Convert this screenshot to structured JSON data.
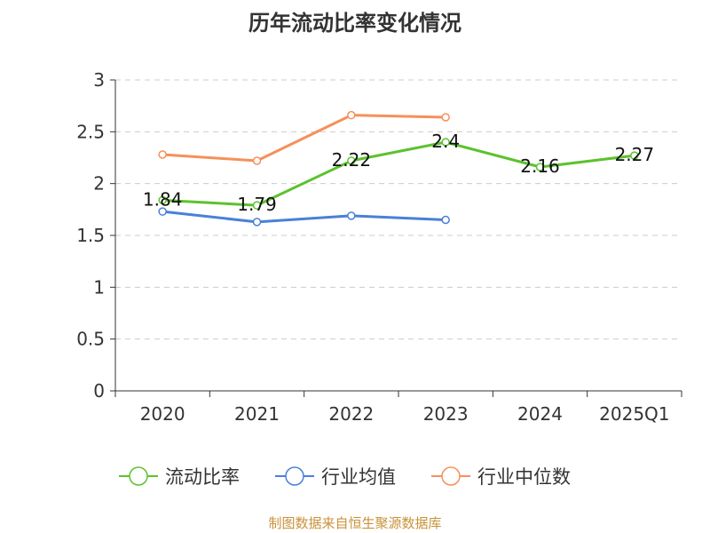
{
  "title": "历年流动比率变化情况",
  "source": "制图数据来自恒生聚源数据库",
  "chart_data": {
    "type": "line",
    "title": "历年流动比率变化情况",
    "categories": [
      "2020",
      "2021",
      "2022",
      "2023",
      "2024",
      "2025Q1"
    ],
    "y_ticks": [
      "0",
      "0.5",
      "1",
      "1.5",
      "2",
      "2.5",
      "3"
    ],
    "ylim": [
      0,
      3
    ],
    "grid": true,
    "legend_position": "bottom",
    "series": [
      {
        "name": "流动比率",
        "color": "#5cc22e",
        "values": [
          1.84,
          1.79,
          2.22,
          2.4,
          2.16,
          2.27
        ],
        "labels": [
          "1.84",
          "1.79",
          "2.22",
          "2.4",
          "2.16",
          "2.27"
        ]
      },
      {
        "name": "行业均值",
        "color": "#4a80d9",
        "values": [
          1.73,
          1.63,
          1.69,
          1.65,
          null,
          null
        ]
      },
      {
        "name": "行业中位数",
        "color": "#f6905a",
        "values": [
          2.28,
          2.22,
          2.66,
          2.64,
          null,
          null
        ]
      }
    ]
  }
}
